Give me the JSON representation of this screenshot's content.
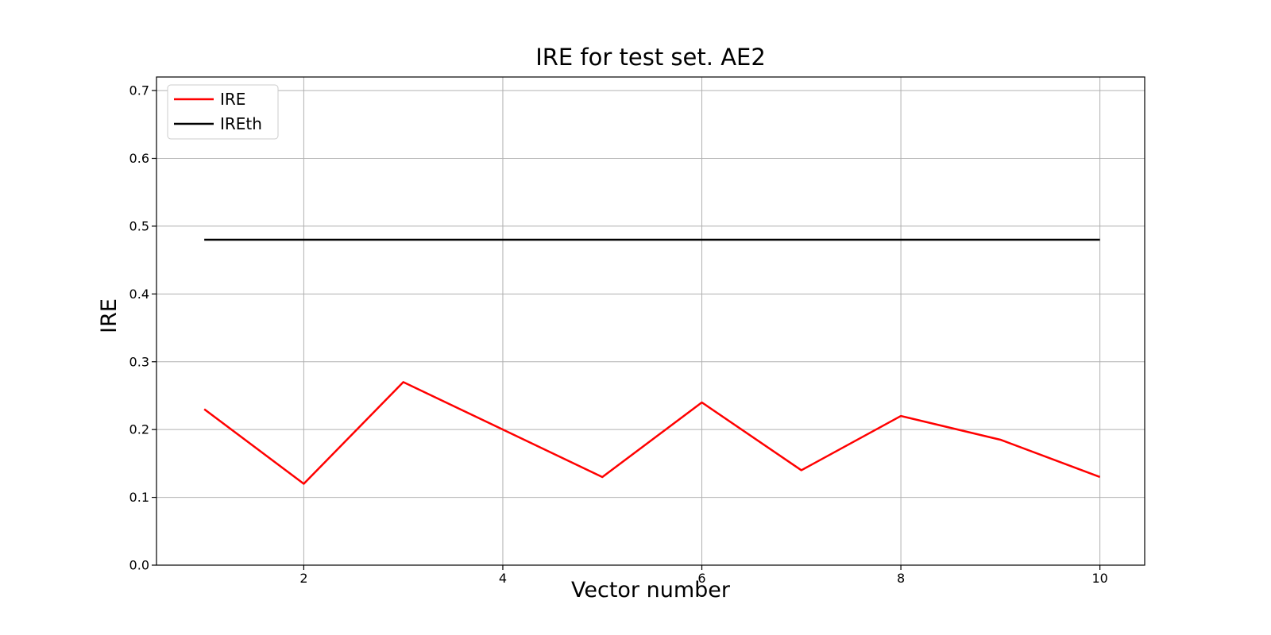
{
  "chart_data": {
    "type": "line",
    "title": "IRE for test set. AE2",
    "xlabel": "Vector number",
    "ylabel": "IRE",
    "x": [
      1,
      2,
      3,
      4,
      5,
      6,
      7,
      8,
      9,
      10
    ],
    "series": [
      {
        "name": "IRE",
        "color": "#ff0000",
        "values": [
          0.23,
          0.12,
          0.27,
          0.2,
          0.13,
          0.24,
          0.14,
          0.22,
          0.185,
          0.13
        ]
      },
      {
        "name": "IREth",
        "color": "#000000",
        "values": [
          0.48,
          0.48,
          0.48,
          0.48,
          0.48,
          0.48,
          0.48,
          0.48,
          0.48,
          0.48
        ]
      }
    ],
    "xlim": [
      0.52,
      10.45
    ],
    "ylim": [
      0,
      0.72
    ],
    "xticks": [
      2,
      4,
      6,
      8,
      10
    ],
    "xtick_labels": [
      "2",
      "4",
      "6",
      "8",
      "10"
    ],
    "yticks": [
      0.0,
      0.1,
      0.2,
      0.3,
      0.4,
      0.5,
      0.6,
      0.7
    ],
    "ytick_labels": [
      "0.0",
      "0.1",
      "0.2",
      "0.3",
      "0.4",
      "0.5",
      "0.6",
      "0.7"
    ],
    "grid": true,
    "grid_color": "#b0b0b0",
    "legend": {
      "position": "upper-left",
      "entries": [
        "IRE",
        "IREth"
      ]
    }
  }
}
